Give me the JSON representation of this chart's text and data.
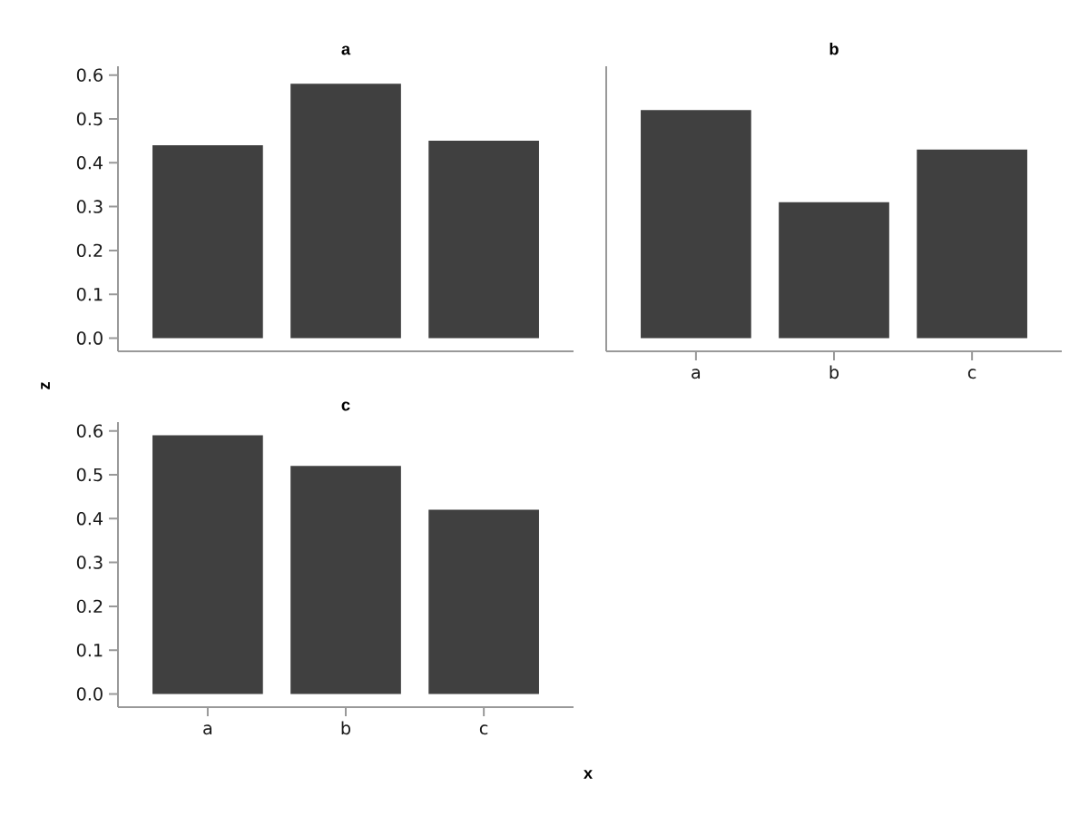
{
  "chart_data": [
    {
      "type": "bar",
      "title": "a",
      "ylabel": "z",
      "categories": [
        null,
        null,
        null
      ],
      "values": [
        0.44,
        0.58,
        0.45
      ],
      "color": "#404040",
      "ylim": [
        -0.03,
        0.62
      ],
      "yticks": [
        {
          "value": 0,
          "label": "0.0"
        },
        {
          "value": 0.1,
          "label": "0.1"
        },
        {
          "value": 0.2,
          "label": "0.2"
        },
        {
          "value": 0.3,
          "label": "0.3"
        },
        {
          "value": 0.4,
          "label": "0.4"
        },
        {
          "value": 0.5,
          "label": "0.5"
        },
        {
          "value": 0.6,
          "label": "0.6"
        }
      ],
      "tick_labels": "y"
    },
    {
      "type": "bar",
      "title": "b",
      "categories": [
        "a",
        "b",
        "c"
      ],
      "values": [
        0.52,
        0.31,
        0.43
      ],
      "color": "#404040",
      "ylim": [
        -0.03,
        0.62
      ],
      "tick_labels": "x"
    },
    {
      "type": "bar",
      "title": "c",
      "xlabel": "x",
      "categories": [
        "a",
        "b",
        "c"
      ],
      "values": [
        0.59,
        0.52,
        0.42
      ],
      "color": "#404040",
      "ylim": [
        -0.03,
        0.62
      ],
      "yticks": [
        {
          "value": 0,
          "label": "0.0"
        },
        {
          "value": 0.1,
          "label": "0.1"
        },
        {
          "value": 0.2,
          "label": "0.2"
        },
        {
          "value": 0.3,
          "label": "0.3"
        },
        {
          "value": 0.4,
          "label": "0.4"
        },
        {
          "value": 0.5,
          "label": "0.5"
        },
        {
          "value": 0.6,
          "label": "0.6"
        }
      ]
    }
  ]
}
